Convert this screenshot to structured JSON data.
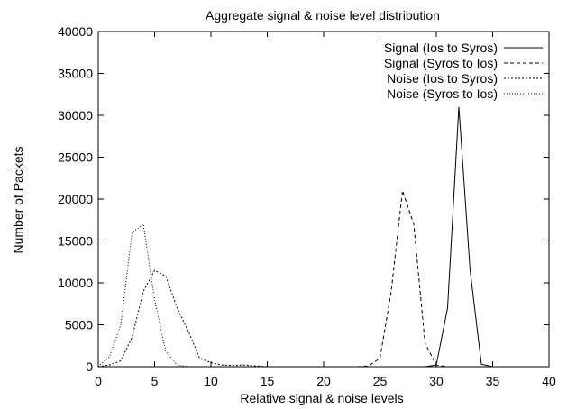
{
  "chart_data": {
    "type": "line",
    "title": "Aggregate signal & noise level distribution",
    "xlabel": "Relative signal & noise levels",
    "ylabel": "Number of Packets",
    "xlim": [
      0,
      40
    ],
    "ylim": [
      0,
      40000
    ],
    "xticks": [
      0,
      5,
      10,
      15,
      20,
      25,
      30,
      35,
      40
    ],
    "yticks": [
      0,
      5000,
      10000,
      15000,
      20000,
      25000,
      30000,
      35000,
      40000
    ],
    "grid": false,
    "legend_position": "top-right",
    "series": [
      {
        "name": "Signal (Ios to Syros)",
        "style": "solid",
        "x": [
          29,
          30,
          31,
          32,
          33,
          34,
          35
        ],
        "y": [
          0,
          200,
          7000,
          31000,
          11500,
          300,
          0
        ]
      },
      {
        "name": "Signal (Syros to Ios)",
        "style": "dashed",
        "x": [
          23,
          24,
          25,
          26,
          27,
          28,
          29,
          30,
          31
        ],
        "y": [
          0,
          100,
          1000,
          9000,
          21000,
          17000,
          2800,
          200,
          0
        ]
      },
      {
        "name": "Noise (Ios to Syros)",
        "style": "dotted",
        "x": [
          0,
          1,
          2,
          3,
          4,
          5,
          6,
          7,
          8,
          9,
          10,
          11,
          12,
          13,
          14,
          15
        ],
        "y": [
          0,
          200,
          700,
          3500,
          9000,
          11500,
          10800,
          7000,
          4200,
          1000,
          500,
          200,
          150,
          200,
          100,
          0
        ]
      },
      {
        "name": "Noise (Syros to Ios)",
        "style": "fine-dotted",
        "x": [
          0,
          1,
          2,
          3,
          4,
          5,
          6,
          7,
          8
        ],
        "y": [
          0,
          1200,
          5000,
          16000,
          17000,
          8000,
          1800,
          200,
          0
        ]
      }
    ]
  }
}
